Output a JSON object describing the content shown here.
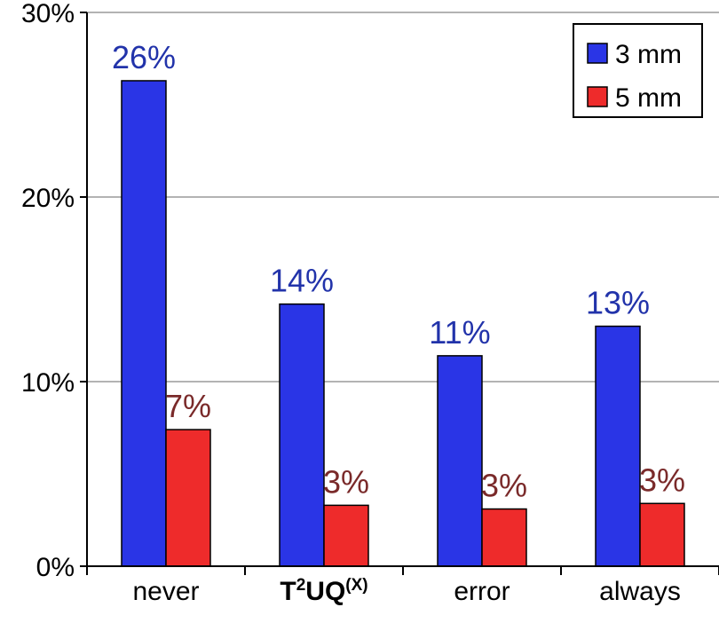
{
  "chart_data": {
    "type": "bar",
    "categories": [
      "never",
      "T²UQ⁽ˣ⁾",
      "error",
      "always"
    ],
    "category_parts": [
      null,
      {
        "base1": "T",
        "sup1": "2",
        "base2": "UQ",
        "sup2": "(X)"
      },
      null,
      null
    ],
    "series": [
      {
        "name": "3 mm",
        "values": [
          26.3,
          14.2,
          11.4,
          13.0
        ],
        "labels": [
          "26%",
          "14%",
          "11%",
          "13%"
        ],
        "color": "#2a35e6",
        "label_color": "#2233aa"
      },
      {
        "name": "5 mm",
        "values": [
          7.4,
          3.3,
          3.1,
          3.4
        ],
        "labels": [
          "7%",
          "3%",
          "3%",
          "3%"
        ],
        "color": "#ee2b2b",
        "label_color": "#7a2a2a"
      }
    ],
    "yticks": [
      0,
      10,
      20,
      30
    ],
    "ytick_labels": [
      "0%",
      "10%",
      "20%",
      "30%"
    ],
    "ylim": [
      0,
      30
    ],
    "grid": true,
    "legend_position": "top-right",
    "title": "",
    "xlabel": "",
    "ylabel": ""
  }
}
